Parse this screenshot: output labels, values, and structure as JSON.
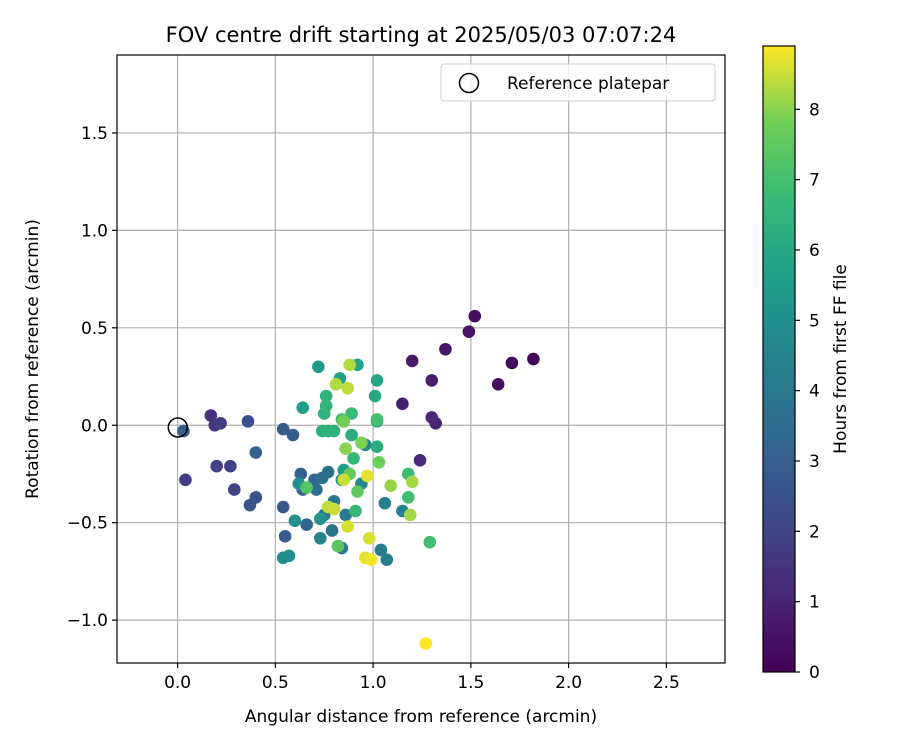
{
  "chart_data": {
    "type": "scatter",
    "title": "FOV centre drift starting at 2025/05/03 07:07:24",
    "xlabel": "Angular distance from reference (arcmin)",
    "ylabel": "Rotation from reference (arcmin)",
    "xlim": [
      -0.31,
      2.8
    ],
    "ylim": [
      -1.22,
      1.9
    ],
    "xticks": [
      0.0,
      0.5,
      1.0,
      1.5,
      2.0,
      2.5
    ],
    "xtick_labels": [
      "0.0",
      "0.5",
      "1.0",
      "1.5",
      "2.0",
      "2.5"
    ],
    "yticks": [
      -1.0,
      -0.5,
      0.0,
      0.5,
      1.0,
      1.5
    ],
    "ytick_labels": [
      "−1.0",
      "−0.5",
      "0.0",
      "0.5",
      "1.0",
      "1.5"
    ],
    "grid": true,
    "legend": {
      "position": "top-right",
      "entries": [
        "Reference platepar"
      ]
    },
    "reference_point": {
      "x": 0.0,
      "y": 0.0,
      "label": "Reference platepar"
    },
    "colorbar": {
      "label": "Hours from first FF file",
      "colormap": "viridis",
      "range": [
        0,
        8.9
      ],
      "ticks": [
        0,
        1,
        2,
        3,
        4,
        5,
        6,
        7,
        8
      ],
      "tick_labels": [
        "0",
        "1",
        "2",
        "3",
        "4",
        "5",
        "6",
        "7",
        "8"
      ]
    },
    "points": [
      {
        "x": 1.82,
        "y": 0.34,
        "hours": 0.1
      },
      {
        "x": 1.71,
        "y": 0.32,
        "hours": 0.2
      },
      {
        "x": 1.64,
        "y": 0.21,
        "hours": 0.3
      },
      {
        "x": 1.52,
        "y": 0.56,
        "hours": 0.4
      },
      {
        "x": 1.49,
        "y": 0.48,
        "hours": 0.5
      },
      {
        "x": 1.37,
        "y": 0.39,
        "hours": 0.6
      },
      {
        "x": 1.2,
        "y": 0.33,
        "hours": 0.7
      },
      {
        "x": 1.3,
        "y": 0.23,
        "hours": 0.8
      },
      {
        "x": 1.15,
        "y": 0.11,
        "hours": 0.9
      },
      {
        "x": 1.32,
        "y": 0.01,
        "hours": 1.0
      },
      {
        "x": 1.3,
        "y": 0.04,
        "hours": 1.1
      },
      {
        "x": 1.24,
        "y": -0.18,
        "hours": 1.2
      },
      {
        "x": 0.17,
        "y": 0.05,
        "hours": 1.4
      },
      {
        "x": 0.19,
        "y": 0.0,
        "hours": 1.6
      },
      {
        "x": 0.22,
        "y": 0.01,
        "hours": 1.8
      },
      {
        "x": 0.04,
        "y": -0.28,
        "hours": 1.8
      },
      {
        "x": 0.2,
        "y": -0.21,
        "hours": 1.9
      },
      {
        "x": 0.27,
        "y": -0.21,
        "hours": 1.9
      },
      {
        "x": 0.29,
        "y": -0.33,
        "hours": 2.0
      },
      {
        "x": 0.36,
        "y": 0.02,
        "hours": 2.4
      },
      {
        "x": 0.4,
        "y": -0.37,
        "hours": 2.5
      },
      {
        "x": 0.37,
        "y": -0.41,
        "hours": 2.6
      },
      {
        "x": 0.54,
        "y": -0.42,
        "hours": 2.7
      },
      {
        "x": 0.55,
        "y": -0.57,
        "hours": 2.8
      },
      {
        "x": 0.54,
        "y": -0.02,
        "hours": 2.8
      },
      {
        "x": 0.59,
        "y": -0.05,
        "hours": 2.9
      },
      {
        "x": 0.03,
        "y": -0.03,
        "hours": 3.0
      },
      {
        "x": 0.4,
        "y": -0.14,
        "hours": 3.1
      },
      {
        "x": 0.63,
        "y": -0.25,
        "hours": 3.1
      },
      {
        "x": 0.64,
        "y": -0.33,
        "hours": 3.2
      },
      {
        "x": 0.66,
        "y": -0.51,
        "hours": 3.3
      },
      {
        "x": 0.7,
        "y": -0.28,
        "hours": 3.4
      },
      {
        "x": 0.71,
        "y": -0.33,
        "hours": 3.5
      },
      {
        "x": 0.74,
        "y": -0.27,
        "hours": 3.6
      },
      {
        "x": 0.77,
        "y": -0.24,
        "hours": 3.7
      },
      {
        "x": 0.75,
        "y": -0.46,
        "hours": 3.8
      },
      {
        "x": 0.79,
        "y": -0.54,
        "hours": 3.8
      },
      {
        "x": 0.8,
        "y": -0.39,
        "hours": 3.9
      },
      {
        "x": 0.84,
        "y": -0.63,
        "hours": 4.0
      },
      {
        "x": 0.86,
        "y": -0.46,
        "hours": 4.1
      },
      {
        "x": 1.04,
        "y": -0.64,
        "hours": 4.1
      },
      {
        "x": 1.07,
        "y": -0.69,
        "hours": 4.2
      },
      {
        "x": 1.06,
        "y": -0.4,
        "hours": 4.3
      },
      {
        "x": 1.15,
        "y": -0.44,
        "hours": 4.4
      },
      {
        "x": 0.73,
        "y": -0.58,
        "hours": 4.5
      },
      {
        "x": 0.94,
        "y": -0.3,
        "hours": 4.6
      },
      {
        "x": 0.96,
        "y": -0.1,
        "hours": 4.7
      },
      {
        "x": 0.54,
        "y": -0.68,
        "hours": 4.8
      },
      {
        "x": 0.57,
        "y": -0.67,
        "hours": 4.9
      },
      {
        "x": 0.6,
        "y": -0.49,
        "hours": 5.0
      },
      {
        "x": 0.62,
        "y": -0.3,
        "hours": 5.1
      },
      {
        "x": 0.73,
        "y": -0.48,
        "hours": 5.2
      },
      {
        "x": 0.84,
        "y": -0.28,
        "hours": 5.3
      },
      {
        "x": 0.85,
        "y": -0.23,
        "hours": 5.4
      },
      {
        "x": 0.72,
        "y": 0.3,
        "hours": 5.5
      },
      {
        "x": 0.64,
        "y": 0.09,
        "hours": 5.6
      },
      {
        "x": 0.83,
        "y": 0.24,
        "hours": 5.7
      },
      {
        "x": 0.92,
        "y": 0.31,
        "hours": 5.8
      },
      {
        "x": 1.02,
        "y": 0.23,
        "hours": 5.9
      },
      {
        "x": 1.01,
        "y": 0.15,
        "hours": 6.0
      },
      {
        "x": 1.02,
        "y": 0.02,
        "hours": 6.1
      },
      {
        "x": 1.02,
        "y": -0.11,
        "hours": 6.2
      },
      {
        "x": 0.89,
        "y": -0.05,
        "hours": 6.2
      },
      {
        "x": 0.74,
        "y": -0.03,
        "hours": 6.3
      },
      {
        "x": 0.77,
        "y": -0.03,
        "hours": 6.3
      },
      {
        "x": 0.8,
        "y": -0.03,
        "hours": 6.4
      },
      {
        "x": 0.75,
        "y": 0.06,
        "hours": 6.4
      },
      {
        "x": 0.76,
        "y": 0.15,
        "hours": 6.5
      },
      {
        "x": 0.76,
        "y": 0.1,
        "hours": 6.6
      },
      {
        "x": 0.9,
        "y": -0.17,
        "hours": 6.6
      },
      {
        "x": 0.91,
        "y": -0.44,
        "hours": 6.7
      },
      {
        "x": 0.89,
        "y": 0.06,
        "hours": 6.8
      },
      {
        "x": 1.18,
        "y": -0.25,
        "hours": 6.8
      },
      {
        "x": 1.18,
        "y": -0.37,
        "hours": 6.9
      },
      {
        "x": 1.29,
        "y": -0.6,
        "hours": 6.9
      },
      {
        "x": 0.84,
        "y": 0.03,
        "hours": 7.0
      },
      {
        "x": 1.02,
        "y": 0.03,
        "hours": 7.0
      },
      {
        "x": 0.66,
        "y": -0.32,
        "hours": 7.3
      },
      {
        "x": 0.82,
        "y": -0.62,
        "hours": 7.4
      },
      {
        "x": 0.92,
        "y": -0.34,
        "hours": 7.5
      },
      {
        "x": 0.88,
        "y": -0.25,
        "hours": 7.6
      },
      {
        "x": 1.03,
        "y": -0.19,
        "hours": 7.7
      },
      {
        "x": 0.85,
        "y": 0.02,
        "hours": 7.8
      },
      {
        "x": 0.94,
        "y": -0.09,
        "hours": 7.9
      },
      {
        "x": 0.86,
        "y": -0.12,
        "hours": 8.0
      },
      {
        "x": 1.09,
        "y": -0.31,
        "hours": 8.1
      },
      {
        "x": 1.19,
        "y": -0.46,
        "hours": 8.2
      },
      {
        "x": 1.2,
        "y": -0.29,
        "hours": 8.2
      },
      {
        "x": 0.81,
        "y": 0.21,
        "hours": 8.3
      },
      {
        "x": 0.88,
        "y": 0.31,
        "hours": 8.3
      },
      {
        "x": 0.87,
        "y": 0.19,
        "hours": 8.4
      },
      {
        "x": 0.77,
        "y": -0.42,
        "hours": 8.4
      },
      {
        "x": 0.8,
        "y": -0.43,
        "hours": 8.5
      },
      {
        "x": 0.85,
        "y": -0.28,
        "hours": 8.5
      },
      {
        "x": 0.87,
        "y": -0.52,
        "hours": 8.6
      },
      {
        "x": 0.98,
        "y": -0.58,
        "hours": 8.6
      },
      {
        "x": 0.97,
        "y": -0.26,
        "hours": 8.7
      },
      {
        "x": 0.96,
        "y": -0.68,
        "hours": 8.7
      },
      {
        "x": 0.99,
        "y": -0.69,
        "hours": 8.8
      },
      {
        "x": 1.27,
        "y": -1.12,
        "hours": 8.9
      }
    ]
  }
}
